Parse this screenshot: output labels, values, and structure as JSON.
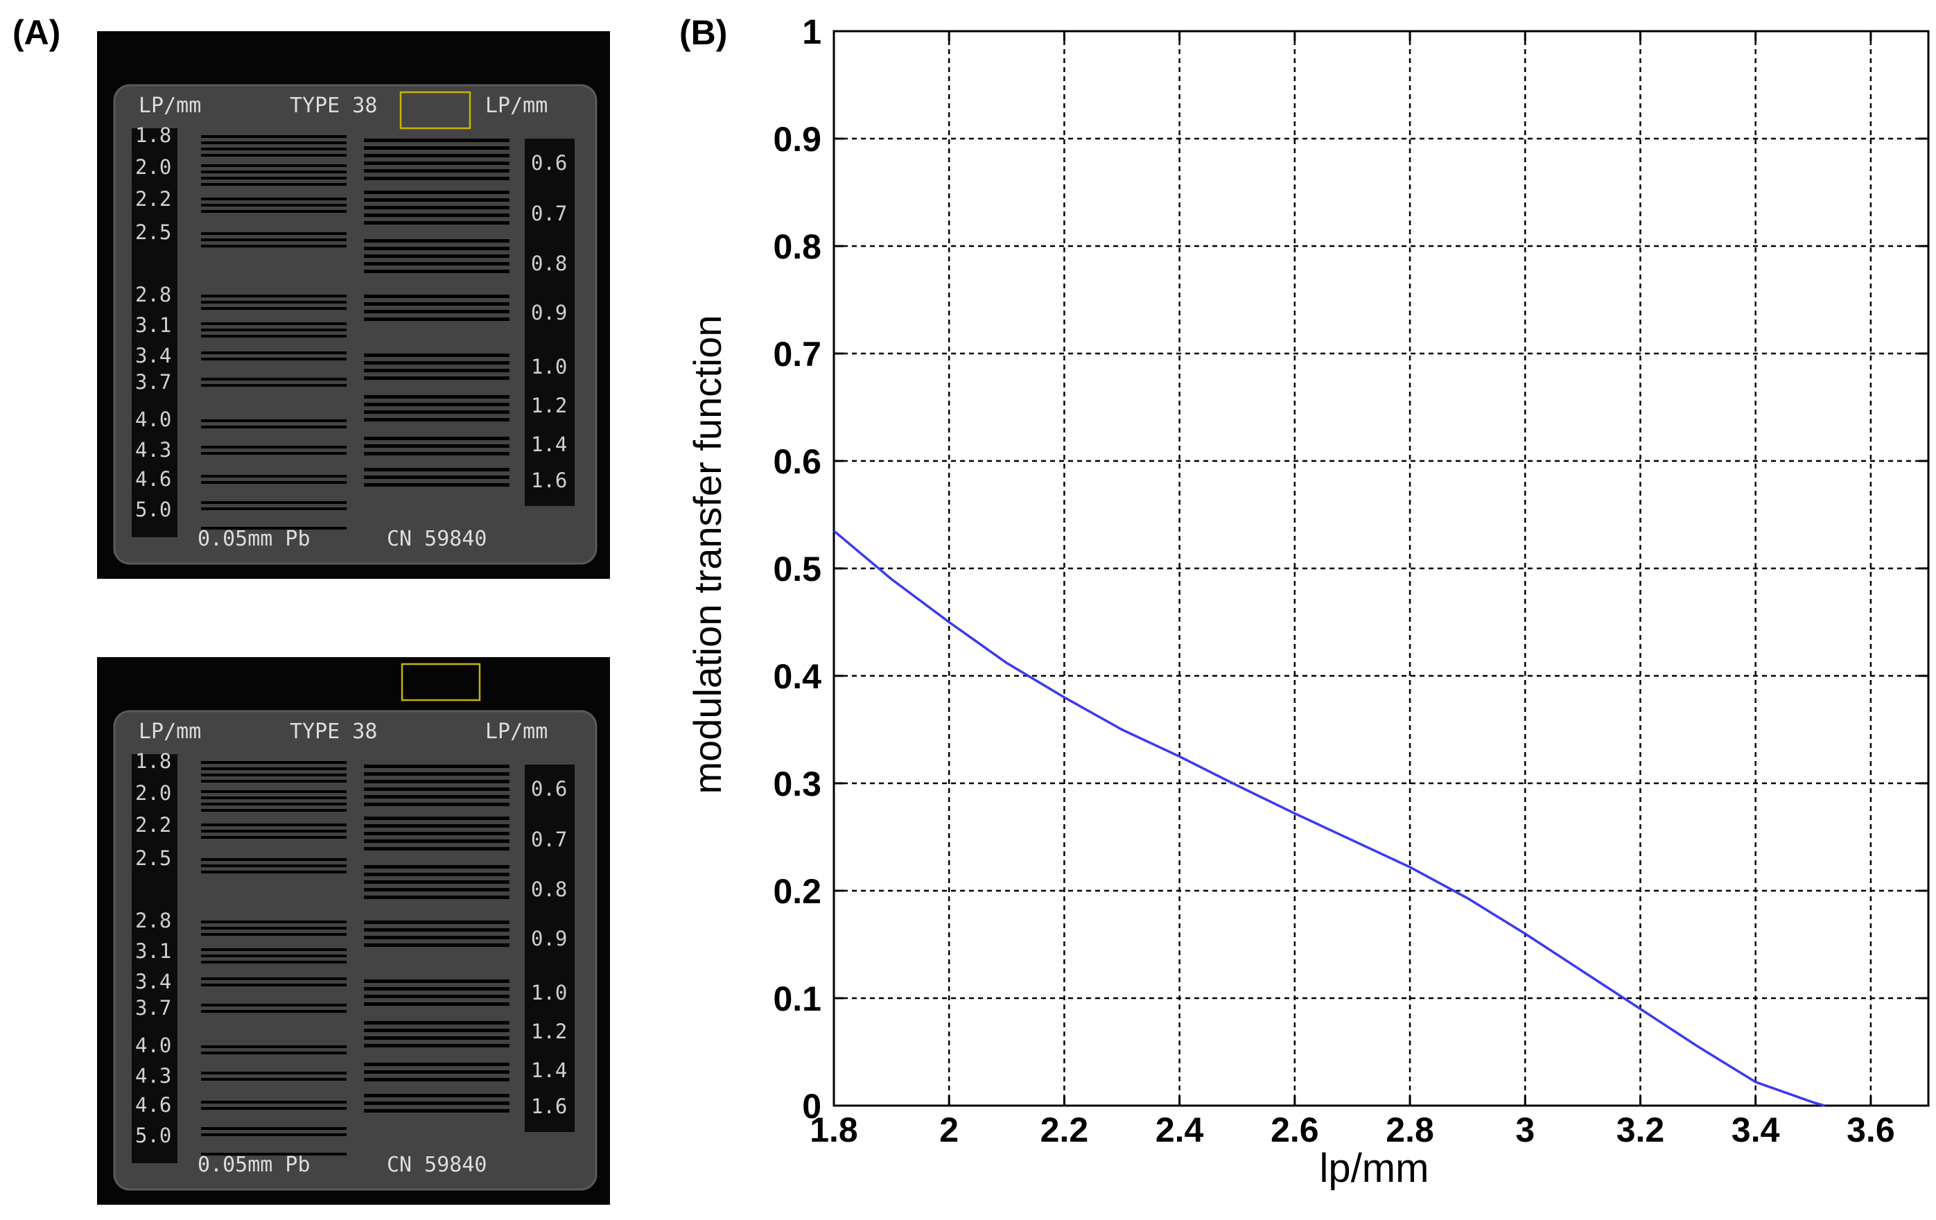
{
  "panels": {
    "a_label": "(A)",
    "b_label": "(B)"
  },
  "phantom": {
    "left_header": "LP/mm",
    "type_label": "TYPE 38",
    "right_header": "LP/mm",
    "left_scale": [
      "1.8",
      "2.0",
      "2.2",
      "2.5",
      "2.8",
      "3.1",
      "3.4",
      "3.7",
      "4.0",
      "4.3",
      "4.6",
      "5.0"
    ],
    "right_scale": [
      "0.6",
      "0.7",
      "0.8",
      "0.9",
      "1.0",
      "1.2",
      "1.4",
      "1.6"
    ],
    "footer_left": "0.05mm Pb",
    "footer_right": "CN 59840",
    "roi_color": "#c8b400"
  },
  "chart_data": {
    "type": "line",
    "xlabel": "lp/mm",
    "ylabel": "modulation transfer function",
    "xlim": [
      1.8,
      3.7
    ],
    "ylim": [
      0,
      1
    ],
    "x_ticks": [
      "1.8",
      "2",
      "2.2",
      "2.4",
      "2.6",
      "2.8",
      "3",
      "3.2",
      "3.4",
      "3.6"
    ],
    "y_ticks": [
      "0",
      "0.1",
      "0.2",
      "0.3",
      "0.4",
      "0.5",
      "0.6",
      "0.7",
      "0.8",
      "0.9",
      "1"
    ],
    "grid": true,
    "line_color": "#3a3af0",
    "series": [
      {
        "x": [
          1.8,
          1.9,
          2.0,
          2.1,
          2.2,
          2.3,
          2.4,
          2.5,
          2.6,
          2.7,
          2.8,
          2.9,
          3.0,
          3.1,
          3.2,
          3.3,
          3.4,
          3.5,
          3.52
        ],
        "y": [
          0.535,
          0.49,
          0.45,
          0.412,
          0.38,
          0.35,
          0.325,
          0.298,
          0.272,
          0.247,
          0.222,
          0.193,
          0.16,
          0.125,
          0.09,
          0.055,
          0.022,
          0.003,
          0.0
        ]
      }
    ]
  }
}
